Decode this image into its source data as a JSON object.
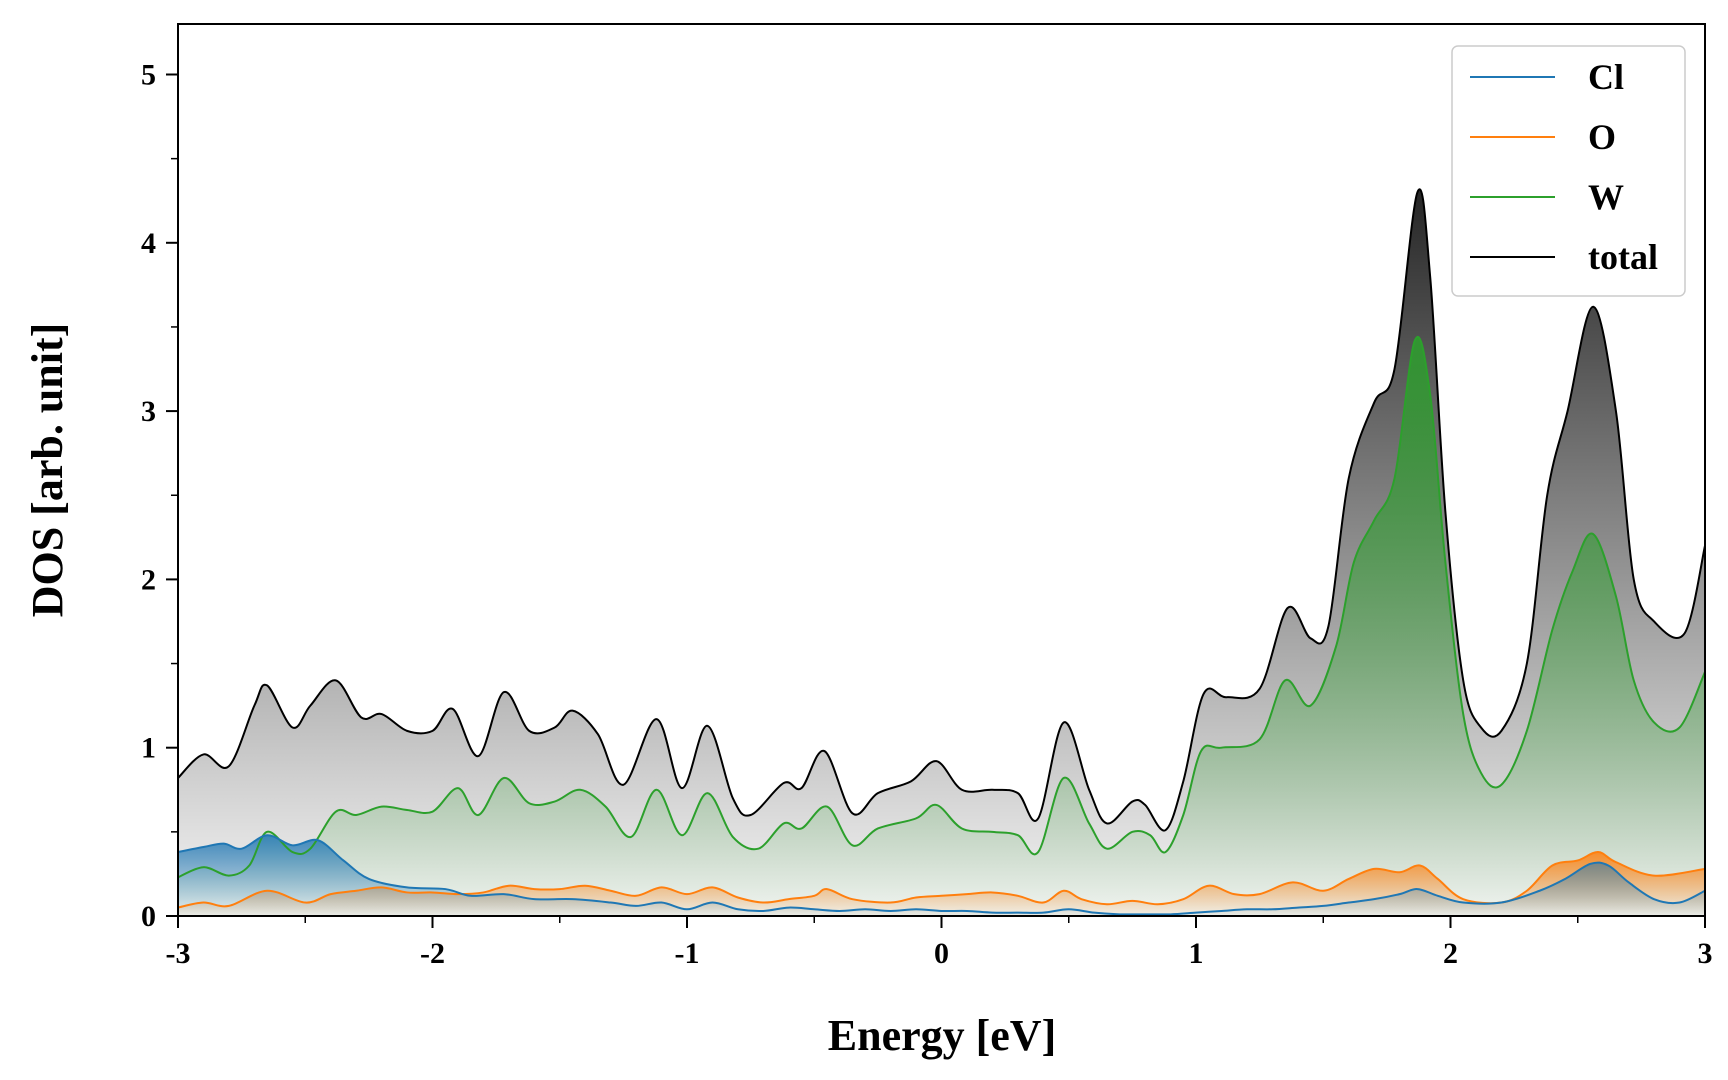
{
  "chart_data": {
    "type": "line",
    "title": "",
    "xlabel": "Energy [eV]",
    "ylabel": "DOS [arb. unit]",
    "xlim": [
      -3,
      3
    ],
    "ylim": [
      0,
      5.3
    ],
    "xticks": [
      -3,
      -2,
      -1,
      0,
      1,
      2,
      3
    ],
    "xtick_labels": [
      "-3",
      "-2",
      "-1",
      "0",
      "1",
      "2",
      "3"
    ],
    "yticks": [
      0,
      1,
      2,
      3,
      4,
      5
    ],
    "ytick_labels": [
      "0",
      "1",
      "2",
      "3",
      "4",
      "5"
    ],
    "legend_position": "top-right",
    "fill_under": true,
    "series": [
      {
        "name": "Cl",
        "color": "#1f77b4",
        "points": [
          [
            -3.0,
            0.38
          ],
          [
            -2.9,
            0.41
          ],
          [
            -2.82,
            0.43
          ],
          [
            -2.75,
            0.4
          ],
          [
            -2.65,
            0.48
          ],
          [
            -2.55,
            0.42
          ],
          [
            -2.45,
            0.45
          ],
          [
            -2.35,
            0.33
          ],
          [
            -2.25,
            0.22
          ],
          [
            -2.1,
            0.17
          ],
          [
            -1.95,
            0.16
          ],
          [
            -1.85,
            0.12
          ],
          [
            -1.72,
            0.13
          ],
          [
            -1.6,
            0.1
          ],
          [
            -1.45,
            0.1
          ],
          [
            -1.3,
            0.08
          ],
          [
            -1.2,
            0.06
          ],
          [
            -1.1,
            0.08
          ],
          [
            -1.0,
            0.04
          ],
          [
            -0.9,
            0.08
          ],
          [
            -0.8,
            0.04
          ],
          [
            -0.7,
            0.03
          ],
          [
            -0.6,
            0.05
          ],
          [
            -0.5,
            0.04
          ],
          [
            -0.4,
            0.03
          ],
          [
            -0.3,
            0.04
          ],
          [
            -0.2,
            0.03
          ],
          [
            -0.1,
            0.04
          ],
          [
            0.0,
            0.03
          ],
          [
            0.1,
            0.03
          ],
          [
            0.2,
            0.02
          ],
          [
            0.3,
            0.02
          ],
          [
            0.4,
            0.02
          ],
          [
            0.5,
            0.04
          ],
          [
            0.6,
            0.02
          ],
          [
            0.7,
            0.01
          ],
          [
            0.8,
            0.01
          ],
          [
            0.9,
            0.01
          ],
          [
            1.0,
            0.02
          ],
          [
            1.1,
            0.03
          ],
          [
            1.2,
            0.04
          ],
          [
            1.3,
            0.04
          ],
          [
            1.4,
            0.05
          ],
          [
            1.5,
            0.06
          ],
          [
            1.6,
            0.08
          ],
          [
            1.7,
            0.1
          ],
          [
            1.8,
            0.13
          ],
          [
            1.87,
            0.16
          ],
          [
            1.95,
            0.12
          ],
          [
            2.05,
            0.08
          ],
          [
            2.2,
            0.08
          ],
          [
            2.35,
            0.15
          ],
          [
            2.45,
            0.22
          ],
          [
            2.55,
            0.31
          ],
          [
            2.62,
            0.3
          ],
          [
            2.7,
            0.2
          ],
          [
            2.8,
            0.1
          ],
          [
            2.9,
            0.08
          ],
          [
            3.0,
            0.15
          ]
        ]
      },
      {
        "name": "O",
        "color": "#ff7f0e",
        "points": [
          [
            -3.0,
            0.05
          ],
          [
            -2.9,
            0.08
          ],
          [
            -2.8,
            0.06
          ],
          [
            -2.65,
            0.15
          ],
          [
            -2.5,
            0.08
          ],
          [
            -2.4,
            0.13
          ],
          [
            -2.3,
            0.15
          ],
          [
            -2.2,
            0.17
          ],
          [
            -2.1,
            0.14
          ],
          [
            -2.0,
            0.14
          ],
          [
            -1.9,
            0.13
          ],
          [
            -1.8,
            0.14
          ],
          [
            -1.7,
            0.18
          ],
          [
            -1.6,
            0.16
          ],
          [
            -1.5,
            0.16
          ],
          [
            -1.4,
            0.18
          ],
          [
            -1.3,
            0.15
          ],
          [
            -1.2,
            0.12
          ],
          [
            -1.1,
            0.17
          ],
          [
            -1.0,
            0.13
          ],
          [
            -0.9,
            0.17
          ],
          [
            -0.8,
            0.11
          ],
          [
            -0.7,
            0.08
          ],
          [
            -0.6,
            0.1
          ],
          [
            -0.5,
            0.12
          ],
          [
            -0.45,
            0.16
          ],
          [
            -0.35,
            0.1
          ],
          [
            -0.2,
            0.08
          ],
          [
            -0.1,
            0.11
          ],
          [
            0.0,
            0.12
          ],
          [
            0.1,
            0.13
          ],
          [
            0.2,
            0.14
          ],
          [
            0.3,
            0.12
          ],
          [
            0.4,
            0.08
          ],
          [
            0.48,
            0.15
          ],
          [
            0.55,
            0.1
          ],
          [
            0.65,
            0.07
          ],
          [
            0.75,
            0.09
          ],
          [
            0.85,
            0.07
          ],
          [
            0.95,
            0.1
          ],
          [
            1.05,
            0.18
          ],
          [
            1.15,
            0.13
          ],
          [
            1.25,
            0.13
          ],
          [
            1.38,
            0.2
          ],
          [
            1.5,
            0.15
          ],
          [
            1.6,
            0.22
          ],
          [
            1.7,
            0.28
          ],
          [
            1.8,
            0.26
          ],
          [
            1.88,
            0.3
          ],
          [
            1.95,
            0.22
          ],
          [
            2.05,
            0.1
          ],
          [
            2.2,
            0.08
          ],
          [
            2.3,
            0.15
          ],
          [
            2.4,
            0.3
          ],
          [
            2.5,
            0.33
          ],
          [
            2.58,
            0.38
          ],
          [
            2.65,
            0.32
          ],
          [
            2.8,
            0.24
          ],
          [
            3.0,
            0.28
          ]
        ]
      },
      {
        "name": "W",
        "color": "#2ca02c",
        "points": [
          [
            -3.0,
            0.23
          ],
          [
            -2.9,
            0.29
          ],
          [
            -2.8,
            0.24
          ],
          [
            -2.72,
            0.3
          ],
          [
            -2.65,
            0.5
          ],
          [
            -2.55,
            0.38
          ],
          [
            -2.48,
            0.4
          ],
          [
            -2.38,
            0.62
          ],
          [
            -2.3,
            0.6
          ],
          [
            -2.2,
            0.65
          ],
          [
            -2.1,
            0.63
          ],
          [
            -2.0,
            0.62
          ],
          [
            -1.9,
            0.76
          ],
          [
            -1.82,
            0.6
          ],
          [
            -1.72,
            0.82
          ],
          [
            -1.62,
            0.67
          ],
          [
            -1.52,
            0.68
          ],
          [
            -1.42,
            0.75
          ],
          [
            -1.32,
            0.65
          ],
          [
            -1.22,
            0.47
          ],
          [
            -1.12,
            0.75
          ],
          [
            -1.02,
            0.48
          ],
          [
            -0.92,
            0.73
          ],
          [
            -0.82,
            0.47
          ],
          [
            -0.72,
            0.4
          ],
          [
            -0.62,
            0.55
          ],
          [
            -0.55,
            0.52
          ],
          [
            -0.45,
            0.65
          ],
          [
            -0.35,
            0.42
          ],
          [
            -0.25,
            0.52
          ],
          [
            -0.1,
            0.58
          ],
          [
            -0.02,
            0.66
          ],
          [
            0.08,
            0.52
          ],
          [
            0.2,
            0.5
          ],
          [
            0.3,
            0.48
          ],
          [
            0.38,
            0.38
          ],
          [
            0.48,
            0.82
          ],
          [
            0.58,
            0.55
          ],
          [
            0.65,
            0.4
          ],
          [
            0.75,
            0.5
          ],
          [
            0.82,
            0.48
          ],
          [
            0.88,
            0.38
          ],
          [
            0.95,
            0.6
          ],
          [
            1.02,
            0.98
          ],
          [
            1.1,
            1.0
          ],
          [
            1.25,
            1.05
          ],
          [
            1.35,
            1.4
          ],
          [
            1.45,
            1.25
          ],
          [
            1.55,
            1.6
          ],
          [
            1.62,
            2.1
          ],
          [
            1.7,
            2.35
          ],
          [
            1.78,
            2.6
          ],
          [
            1.86,
            3.42
          ],
          [
            1.92,
            3.1
          ],
          [
            1.98,
            2.1
          ],
          [
            2.05,
            1.2
          ],
          [
            2.12,
            0.85
          ],
          [
            2.2,
            0.78
          ],
          [
            2.3,
            1.1
          ],
          [
            2.4,
            1.7
          ],
          [
            2.48,
            2.05
          ],
          [
            2.56,
            2.27
          ],
          [
            2.65,
            1.9
          ],
          [
            2.72,
            1.4
          ],
          [
            2.8,
            1.15
          ],
          [
            2.9,
            1.12
          ],
          [
            3.0,
            1.45
          ]
        ]
      },
      {
        "name": "total",
        "color": "#000000",
        "points": [
          [
            -3.0,
            0.82
          ],
          [
            -2.9,
            0.96
          ],
          [
            -2.8,
            0.89
          ],
          [
            -2.7,
            1.25
          ],
          [
            -2.65,
            1.37
          ],
          [
            -2.55,
            1.12
          ],
          [
            -2.48,
            1.25
          ],
          [
            -2.38,
            1.4
          ],
          [
            -2.28,
            1.18
          ],
          [
            -2.2,
            1.2
          ],
          [
            -2.1,
            1.1
          ],
          [
            -2.0,
            1.1
          ],
          [
            -1.92,
            1.23
          ],
          [
            -1.82,
            0.95
          ],
          [
            -1.72,
            1.33
          ],
          [
            -1.62,
            1.1
          ],
          [
            -1.52,
            1.12
          ],
          [
            -1.45,
            1.22
          ],
          [
            -1.35,
            1.08
          ],
          [
            -1.25,
            0.78
          ],
          [
            -1.12,
            1.17
          ],
          [
            -1.02,
            0.76
          ],
          [
            -0.92,
            1.13
          ],
          [
            -0.82,
            0.7
          ],
          [
            -0.75,
            0.6
          ],
          [
            -0.62,
            0.79
          ],
          [
            -0.55,
            0.76
          ],
          [
            -0.46,
            0.98
          ],
          [
            -0.35,
            0.61
          ],
          [
            -0.25,
            0.73
          ],
          [
            -0.12,
            0.8
          ],
          [
            -0.02,
            0.92
          ],
          [
            0.08,
            0.75
          ],
          [
            0.2,
            0.75
          ],
          [
            0.3,
            0.73
          ],
          [
            0.38,
            0.58
          ],
          [
            0.48,
            1.15
          ],
          [
            0.58,
            0.75
          ],
          [
            0.65,
            0.55
          ],
          [
            0.75,
            0.68
          ],
          [
            0.8,
            0.66
          ],
          [
            0.88,
            0.51
          ],
          [
            0.95,
            0.8
          ],
          [
            1.03,
            1.32
          ],
          [
            1.12,
            1.3
          ],
          [
            1.25,
            1.35
          ],
          [
            1.36,
            1.83
          ],
          [
            1.45,
            1.65
          ],
          [
            1.52,
            1.72
          ],
          [
            1.6,
            2.6
          ],
          [
            1.7,
            3.05
          ],
          [
            1.78,
            3.25
          ],
          [
            1.87,
            4.3
          ],
          [
            1.92,
            3.8
          ],
          [
            1.98,
            2.4
          ],
          [
            2.05,
            1.4
          ],
          [
            2.12,
            1.12
          ],
          [
            2.2,
            1.1
          ],
          [
            2.3,
            1.5
          ],
          [
            2.38,
            2.5
          ],
          [
            2.46,
            3.0
          ],
          [
            2.56,
            3.62
          ],
          [
            2.65,
            3.0
          ],
          [
            2.72,
            2.0
          ],
          [
            2.8,
            1.75
          ],
          [
            2.92,
            1.68
          ],
          [
            3.0,
            2.2
          ]
        ]
      }
    ]
  }
}
